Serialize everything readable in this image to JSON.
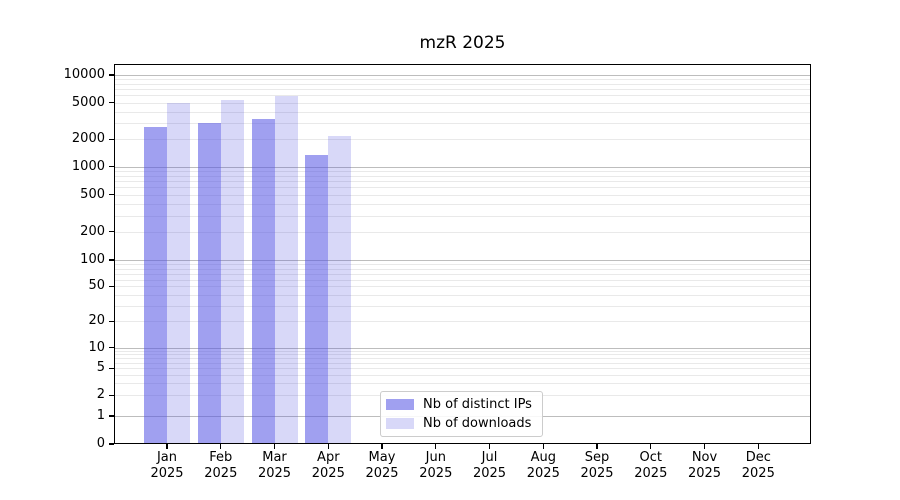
{
  "chart_data": {
    "type": "bar",
    "title": "mzR 2025",
    "year_label": "2025",
    "categories": [
      "Jan",
      "Feb",
      "Mar",
      "Apr",
      "May",
      "Jun",
      "Jul",
      "Aug",
      "Sep",
      "Oct",
      "Nov",
      "Dec"
    ],
    "series": [
      {
        "name": "Nb of distinct IPs",
        "color": "#a0a0f0",
        "color_rgba": "rgba(82,82,227,0.55)",
        "values": [
          2700,
          3000,
          3300,
          1340,
          null,
          null,
          null,
          null,
          null,
          null,
          null,
          null
        ]
      },
      {
        "name": "Nb of downloads",
        "color": "#d8d8f8",
        "color_rgba": "rgba(60,60,220,0.2)",
        "values": [
          4950,
          5300,
          5900,
          2160,
          null,
          null,
          null,
          null,
          null,
          null,
          null,
          null
        ]
      }
    ],
    "y_ticks": [
      0,
      1,
      2,
      5,
      10,
      20,
      50,
      100,
      200,
      500,
      1000,
      2000,
      5000,
      10000
    ],
    "y_scale": "log (linear below 1, zero shown)",
    "ylim": [
      0,
      13000
    ],
    "xlabel": "",
    "ylabel": "",
    "grid": "horizontal major and minor gridlines",
    "legend_position": "lower center-left inside plot",
    "colors": {
      "background": "#ffffff",
      "axis": "#000000",
      "grid_major": "#bdbdbd",
      "grid_minor": "#e9e9e9",
      "tick_label": "#000000"
    }
  }
}
